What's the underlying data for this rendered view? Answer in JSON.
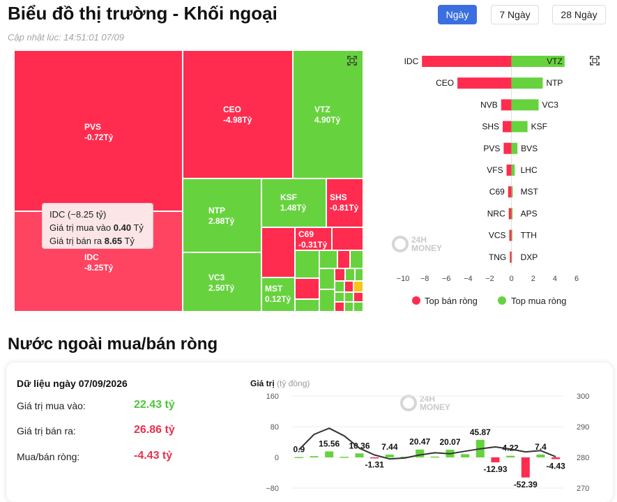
{
  "header": {
    "title": "Biểu đồ thị trường - Khối ngoại",
    "updated": "Cập nhật lúc: 14:51:01 07/09",
    "tabs": [
      "Ngày",
      "7 Ngày",
      "28 Ngày"
    ],
    "active_tab": "Ngày"
  },
  "colors": {
    "red": "#ff2c4f",
    "green": "#66d33e",
    "accent": "#3b6fe0",
    "tooltip_bg": "#fbe5e7"
  },
  "treemap": {
    "cells": [
      {
        "code": "PVS",
        "value": "-0.72Tỷ",
        "side": "sell"
      },
      {
        "code": "IDC",
        "value": "-8.25Tỷ",
        "side": "sell"
      },
      {
        "code": "CEO",
        "value": "-4.98Tỷ",
        "side": "sell"
      },
      {
        "code": "VTZ",
        "value": "4.90Tỷ",
        "side": "buy"
      },
      {
        "code": "NTP",
        "value": "2.88Tỷ",
        "side": "buy"
      },
      {
        "code": "KSF",
        "value": "1.48Tỷ",
        "side": "buy"
      },
      {
        "code": "SHS",
        "value": "-0.81Tỷ",
        "side": "sell"
      },
      {
        "code": "C69",
        "value": "-0.31Tỷ",
        "side": "sell"
      },
      {
        "code": "VC3",
        "value": "2.50Tỷ",
        "side": "buy"
      },
      {
        "code": "MST",
        "value": "0.12Tỷ",
        "side": "buy"
      }
    ],
    "tooltip": {
      "head": "IDC (−8.25 tỷ)",
      "buy_label": "Giá trị mua vào",
      "buy_value": "0.40",
      "sell_label": "Giá trị bán ra",
      "sell_value": "8.65",
      "unit": "Tỷ"
    }
  },
  "watermark": {
    "line1": "24H",
    "line2": "MONEY"
  },
  "chart_data": [
    {
      "type": "bar",
      "orientation": "horizontal-diverging",
      "sell_codes": [
        "IDC",
        "CEO",
        "NVB",
        "SHS",
        "PVS",
        "VFS",
        "C69",
        "NRC",
        "VCS",
        "TNG"
      ],
      "sell_values": [
        -8.25,
        -4.98,
        -0.95,
        -0.81,
        -0.72,
        -0.45,
        -0.31,
        -0.25,
        -0.2,
        -0.15
      ],
      "buy_codes": [
        "VTZ",
        "NTP",
        "VC3",
        "KSF",
        "BVS",
        "LHC",
        "MST",
        "APS",
        "TTH",
        "DXP"
      ],
      "buy_values": [
        4.9,
        2.88,
        2.5,
        1.48,
        0.55,
        0.3,
        0.12,
        0.1,
        0.08,
        0.05
      ],
      "x_ticks": [
        "−10",
        "−8",
        "−6",
        "−4",
        "−2",
        "0",
        "2",
        "4",
        "6"
      ],
      "xlim": [
        -10,
        6
      ],
      "legend": [
        "Top bán ròng",
        "Top mua ròng"
      ],
      "legend_position": "bottom"
    },
    {
      "type": "bar",
      "ylabel": "Giá trị",
      "yunit": "(tỷ đồng)",
      "ylim": [
        -80,
        160
      ],
      "y_ticks": [
        "160",
        "80",
        "0",
        "−80"
      ],
      "y2lim": [
        270,
        300
      ],
      "y2_ticks": [
        "300",
        "290",
        "280",
        "270"
      ],
      "bars": [
        0.9,
        3.2,
        15.56,
        1.5,
        10.36,
        -1.31,
        7.44,
        1.8,
        20.47,
        2.1,
        20.07,
        8.5,
        45.87,
        -12.93,
        4.22,
        -52.39,
        7.4,
        -4.43
      ],
      "data_labels": [
        "0.9",
        "",
        "15.56",
        "",
        "10.36",
        "-1.31",
        "7.44",
        "",
        "20.47",
        "",
        "20.07",
        "",
        "45.87",
        "-12.93",
        "4.22",
        "-52.39",
        "7.4",
        "-4.43"
      ],
      "line": [
        282.5,
        287.5,
        289.5,
        287.0,
        283.0,
        280.8,
        279.5,
        279.8,
        280.8,
        281.5,
        281.2,
        282.0,
        282.8,
        283.4,
        282.7,
        281.8,
        282.2,
        280.2
      ]
    }
  ],
  "summary": {
    "date_label": "Dữ liệu ngày 07/09/2026",
    "buy_label": "Giá trị mua vào:",
    "buy_value": "22.43 tỷ",
    "sell_label": "Giá trị bán ra:",
    "sell_value": "26.86 tỷ",
    "net_label": "Mua/bán ròng:",
    "net_value": "-4.43 tỷ"
  },
  "section_title": "Nước ngoài mua/bán ròng"
}
